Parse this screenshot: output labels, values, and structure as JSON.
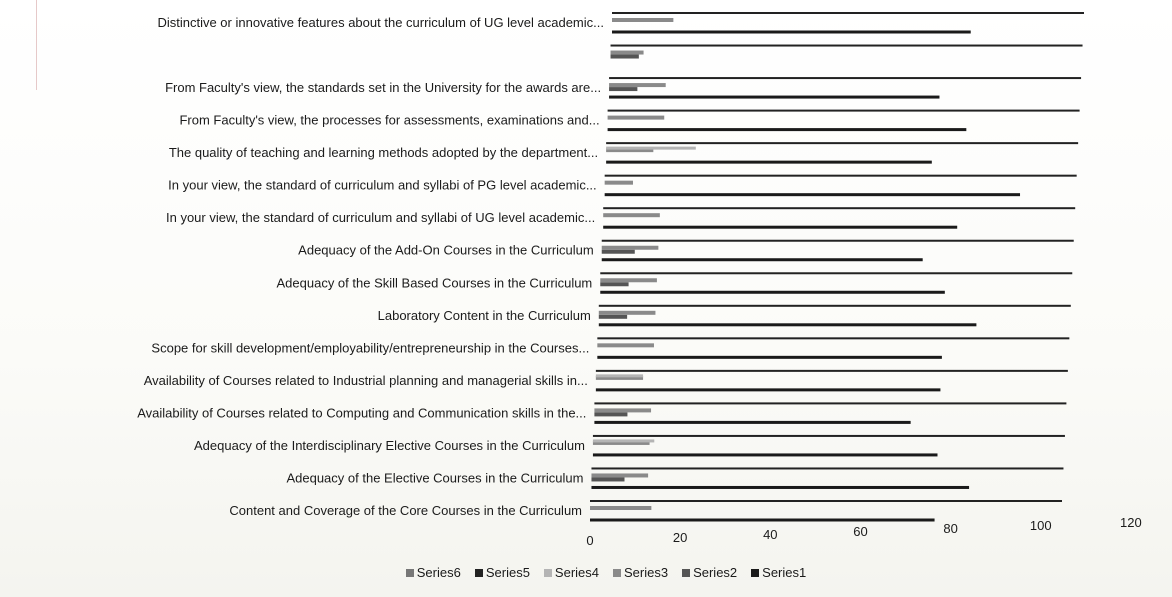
{
  "chart_data": {
    "type": "bar",
    "orientation": "horizontal",
    "categories": [
      "Distinctive or innovative features about the curriculum of UG level academic...",
      "",
      "From Faculty's view, the standards set in the University for the awards are...",
      "From Faculty's view, the processes for assessments, examinations and...",
      "The quality of teaching and learning methods adopted by the department...",
      "In your view, the standard of curriculum and syllabi of PG level academic...",
      "In your view, the standard of curriculum and syllabi of UG level academic...",
      "Adequacy of the Add-On Courses in the Curriculum",
      "Adequacy of the Skill Based Courses in the Curriculum",
      "Laboratory Content in the Curriculum",
      "Scope for skill development/employability/entrepreneurship in the Courses...",
      "Availability of Courses related to Industrial planning and managerial skills in...",
      "Availability of Courses related to Computing and Communication skills in the...",
      "Adequacy of the Interdisciplinary Elective Courses in the Curriculum",
      "Adequacy of the Elective Courses in the Curriculum",
      "Content and Coverage of the Core Courses in the Curriculum"
    ],
    "series": [
      {
        "name": "Series1",
        "color": "#1a1a1a",
        "values": [
          76,
          0,
          70,
          76,
          69,
          88,
          75,
          68,
          73,
          80,
          73,
          73,
          67,
          73,
          80,
          73
        ]
      },
      {
        "name": "Series2",
        "color": "#555555",
        "values": [
          0,
          6,
          6,
          0,
          0,
          0,
          0,
          7,
          6,
          6,
          0,
          0,
          7,
          0,
          7,
          0
        ]
      },
      {
        "name": "Series3",
        "color": "#8a8a8a",
        "values": [
          13,
          7,
          12,
          12,
          10,
          6,
          12,
          12,
          12,
          12,
          12,
          10,
          12,
          12,
          12,
          13
        ]
      },
      {
        "name": "Series4",
        "color": "#b4b4b4",
        "values": [
          0,
          0,
          0,
          0,
          19,
          0,
          0,
          0,
          0,
          0,
          0,
          10,
          0,
          13,
          0,
          0
        ]
      },
      {
        "name": "Series5",
        "color": "#222222",
        "values": [
          100,
          100,
          100,
          100,
          100,
          100,
          100,
          100,
          100,
          100,
          100,
          100,
          100,
          100,
          100,
          100
        ]
      },
      {
        "name": "Series6",
        "color": "#777777",
        "values": [
          0,
          0,
          0,
          0,
          0,
          0,
          0,
          0,
          0,
          0,
          0,
          0,
          0,
          0,
          0,
          0
        ]
      }
    ],
    "xlim": [
      0,
      120
    ],
    "xticks": [
      "0",
      "20",
      "40",
      "60",
      "80",
      "100",
      "120"
    ],
    "legend_position": "bottom",
    "legend_order": [
      "Series6",
      "Series5",
      "Series4",
      "Series3",
      "Series2",
      "Series1"
    ],
    "grid": false,
    "title": "",
    "xlabel": "",
    "ylabel": ""
  }
}
